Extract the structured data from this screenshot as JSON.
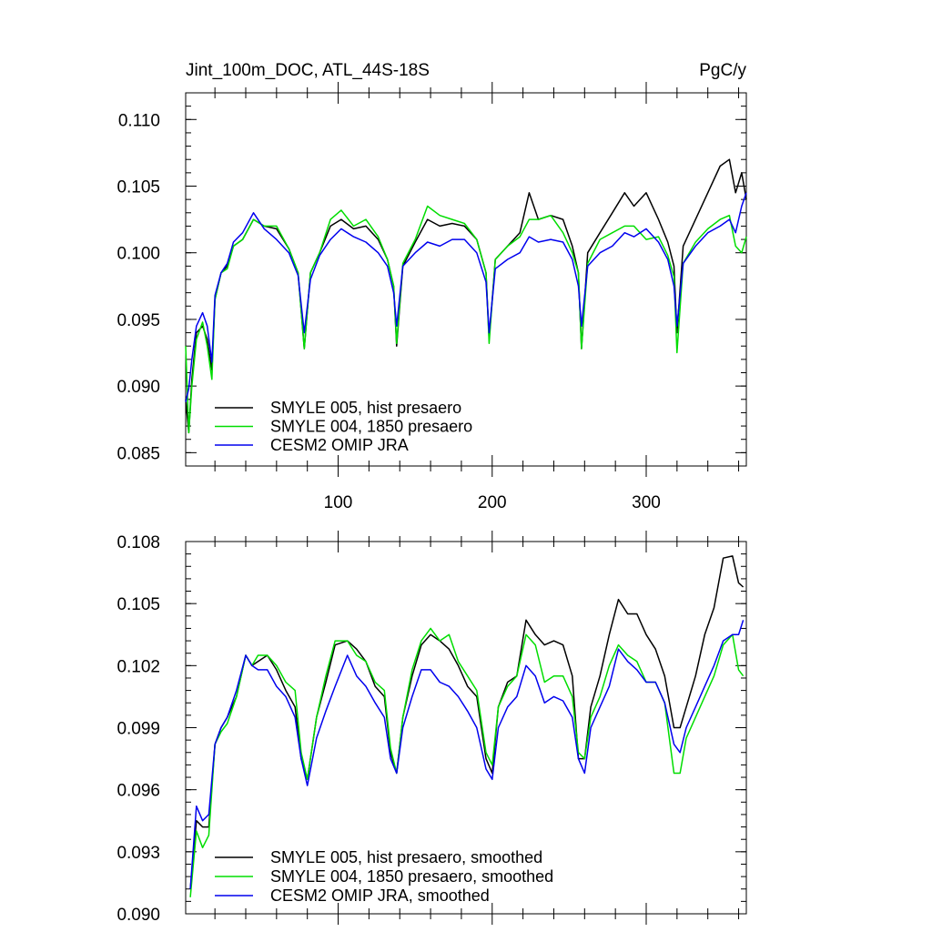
{
  "chart_data": [
    {
      "type": "line",
      "title_left": "Jint_100m_DOC, ATL_44S-18S",
      "title_right": "PgC/y",
      "xlim": [
        1,
        365
      ],
      "ylim": [
        0.084,
        0.112
      ],
      "x_ticks": [
        100,
        200,
        300
      ],
      "x_tick_labels": [
        "100",
        "200",
        "300"
      ],
      "y_ticks": [
        0.085,
        0.09,
        0.095,
        0.1,
        0.105,
        0.11
      ],
      "y_tick_labels": [
        "0.085",
        "0.090",
        "0.095",
        "0.100",
        "0.105",
        "0.110"
      ],
      "grid": false,
      "legend_placement": "bottom-left",
      "series": [
        {
          "name": "SMYLE 005, hist presaero",
          "color": "#000000",
          "x": [
            1,
            3,
            5,
            8,
            12,
            15,
            18,
            20,
            24,
            28,
            32,
            38,
            45,
            52,
            60,
            68,
            74,
            78,
            82,
            88,
            95,
            102,
            110,
            118,
            126,
            132,
            136,
            138,
            142,
            150,
            158,
            166,
            174,
            182,
            190,
            196,
            198,
            202,
            210,
            218,
            224,
            230,
            238,
            246,
            252,
            256,
            258,
            262,
            270,
            278,
            286,
            292,
            300,
            308,
            314,
            318,
            320,
            324,
            332,
            340,
            348,
            354,
            358,
            362,
            365
          ],
          "values": [
            0.089,
            0.0865,
            0.0905,
            0.094,
            0.0945,
            0.0935,
            0.0912,
            0.0965,
            0.0985,
            0.099,
            0.1005,
            0.101,
            0.1025,
            0.102,
            0.1018,
            0.1003,
            0.0985,
            0.0928,
            0.0985,
            0.1,
            0.102,
            0.1025,
            0.1018,
            0.102,
            0.101,
            0.0995,
            0.0975,
            0.093,
            0.099,
            0.1008,
            0.1025,
            0.102,
            0.1022,
            0.102,
            0.101,
            0.0985,
            0.0935,
            0.0995,
            0.1005,
            0.1015,
            0.1045,
            0.1025,
            0.1028,
            0.1025,
            0.1005,
            0.0985,
            0.0928,
            0.1,
            0.1015,
            0.103,
            0.1045,
            0.1035,
            0.1045,
            0.1025,
            0.1008,
            0.099,
            0.094,
            0.1005,
            0.1025,
            0.1045,
            0.1065,
            0.107,
            0.1045,
            0.106,
            0.104
          ]
        },
        {
          "name": "SMYLE 004, 1850 presaero",
          "color": "#00dd00",
          "x": [
            1,
            3,
            5,
            8,
            12,
            15,
            18,
            20,
            24,
            28,
            32,
            38,
            45,
            52,
            60,
            68,
            74,
            78,
            82,
            88,
            95,
            102,
            110,
            118,
            126,
            132,
            136,
            138,
            142,
            150,
            158,
            166,
            174,
            182,
            190,
            196,
            198,
            202,
            210,
            218,
            224,
            230,
            238,
            246,
            252,
            256,
            258,
            262,
            270,
            278,
            286,
            292,
            300,
            308,
            314,
            318,
            320,
            324,
            332,
            340,
            348,
            354,
            358,
            362,
            365
          ],
          "values": [
            0.093,
            0.0865,
            0.09,
            0.0935,
            0.0948,
            0.093,
            0.0905,
            0.0965,
            0.0985,
            0.0988,
            0.1005,
            0.101,
            0.1025,
            0.102,
            0.102,
            0.1003,
            0.0985,
            0.0928,
            0.0985,
            0.1,
            0.1025,
            0.1032,
            0.102,
            0.1025,
            0.1012,
            0.0995,
            0.0975,
            0.0932,
            0.0992,
            0.101,
            0.1035,
            0.1028,
            0.1025,
            0.1022,
            0.101,
            0.0985,
            0.0932,
            0.0995,
            0.1005,
            0.1012,
            0.1025,
            0.1025,
            0.1028,
            0.1015,
            0.1,
            0.0985,
            0.0928,
            0.0992,
            0.101,
            0.1015,
            0.102,
            0.102,
            0.101,
            0.1012,
            0.0998,
            0.0982,
            0.0925,
            0.0992,
            0.1008,
            0.1018,
            0.1025,
            0.1028,
            0.1005,
            0.1,
            0.1012
          ]
        },
        {
          "name": "CESM2 OMIP JRA",
          "color": "#0000ee",
          "x": [
            1,
            3,
            5,
            8,
            12,
            15,
            18,
            20,
            24,
            28,
            32,
            38,
            45,
            52,
            60,
            68,
            74,
            78,
            82,
            88,
            95,
            102,
            110,
            118,
            126,
            132,
            136,
            138,
            142,
            150,
            158,
            166,
            174,
            182,
            190,
            196,
            198,
            202,
            210,
            218,
            224,
            230,
            238,
            246,
            252,
            256,
            258,
            262,
            270,
            278,
            286,
            292,
            300,
            308,
            314,
            318,
            320,
            324,
            332,
            340,
            348,
            354,
            358,
            362,
            365
          ],
          "values": [
            0.0888,
            0.0898,
            0.092,
            0.0945,
            0.0955,
            0.0945,
            0.0918,
            0.0968,
            0.0985,
            0.0992,
            0.1008,
            0.1015,
            0.103,
            0.1018,
            0.101,
            0.1,
            0.0983,
            0.094,
            0.098,
            0.0998,
            0.101,
            0.1018,
            0.1012,
            0.1008,
            0.1,
            0.099,
            0.097,
            0.0945,
            0.099,
            0.1,
            0.1008,
            0.1005,
            0.101,
            0.101,
            0.1,
            0.0978,
            0.094,
            0.0988,
            0.0995,
            0.1,
            0.1012,
            0.1008,
            0.101,
            0.1008,
            0.0995,
            0.0975,
            0.0945,
            0.099,
            0.1,
            0.1005,
            0.1015,
            0.1012,
            0.1018,
            0.1008,
            0.0995,
            0.0975,
            0.0945,
            0.0992,
            0.1005,
            0.1015,
            0.102,
            0.1025,
            0.1015,
            0.1035,
            0.1045
          ]
        }
      ],
      "legend": [
        "SMYLE 005, hist presaero",
        "SMYLE 004, 1850 presaero",
        "CESM2 OMIP JRA"
      ]
    },
    {
      "type": "line",
      "xlim": [
        1,
        365
      ],
      "ylim": [
        0.09,
        0.108
      ],
      "y_ticks": [
        0.09,
        0.093,
        0.096,
        0.099,
        0.102,
        0.105,
        0.108
      ],
      "y_tick_labels": [
        "0.090",
        "0.093",
        "0.096",
        "0.099",
        "0.102",
        "0.105",
        "0.108"
      ],
      "grid": false,
      "legend_placement": "bottom-left",
      "series": [
        {
          "name": "SMYLE 005, hist presaero, smoothed",
          "color": "#000000",
          "x": [
            4,
            8,
            12,
            16,
            20,
            24,
            28,
            34,
            40,
            44,
            48,
            54,
            60,
            66,
            72,
            76,
            80,
            86,
            92,
            98,
            106,
            112,
            118,
            124,
            130,
            134,
            138,
            142,
            148,
            154,
            160,
            166,
            172,
            178,
            184,
            190,
            196,
            200,
            204,
            210,
            216,
            222,
            228,
            234,
            240,
            246,
            252,
            256,
            260,
            264,
            270,
            276,
            282,
            288,
            294,
            300,
            306,
            312,
            318,
            322,
            326,
            332,
            338,
            344,
            350,
            356,
            360,
            363
          ],
          "values": [
            0.0912,
            0.0945,
            0.0942,
            0.0942,
            0.0982,
            0.099,
            0.0995,
            0.1005,
            0.1025,
            0.102,
            0.1022,
            0.1025,
            0.1018,
            0.1008,
            0.1,
            0.0975,
            0.0965,
            0.0995,
            0.1012,
            0.103,
            0.1032,
            0.1028,
            0.1022,
            0.101,
            0.1005,
            0.0978,
            0.0968,
            0.0995,
            0.1015,
            0.103,
            0.1035,
            0.1032,
            0.1028,
            0.102,
            0.101,
            0.1005,
            0.0975,
            0.0968,
            0.1,
            0.1012,
            0.1015,
            0.1042,
            0.1035,
            0.103,
            0.1032,
            0.103,
            0.1015,
            0.0975,
            0.0975,
            0.1,
            0.1015,
            0.1035,
            0.1052,
            0.1045,
            0.1045,
            0.1035,
            0.1028,
            0.1015,
            0.099,
            0.099,
            0.1,
            0.1015,
            0.1035,
            0.1048,
            0.1072,
            0.1073,
            0.106,
            0.1058
          ]
        },
        {
          "name": "SMYLE 004, 1850 presaero, smoothed",
          "color": "#00dd00",
          "x": [
            4,
            8,
            12,
            16,
            20,
            24,
            28,
            34,
            40,
            44,
            48,
            54,
            60,
            66,
            72,
            76,
            80,
            86,
            92,
            98,
            106,
            112,
            118,
            124,
            130,
            134,
            138,
            142,
            148,
            154,
            160,
            166,
            172,
            178,
            184,
            190,
            196,
            200,
            204,
            210,
            216,
            222,
            228,
            234,
            240,
            246,
            252,
            256,
            260,
            264,
            270,
            276,
            282,
            288,
            294,
            300,
            306,
            312,
            318,
            322,
            326,
            332,
            338,
            344,
            350,
            356,
            360,
            363
          ],
          "values": [
            0.0908,
            0.094,
            0.0932,
            0.0938,
            0.0982,
            0.0988,
            0.0992,
            0.1005,
            0.1025,
            0.102,
            0.1025,
            0.1025,
            0.102,
            0.1012,
            0.1008,
            0.0978,
            0.0965,
            0.0995,
            0.1015,
            0.1032,
            0.1032,
            0.1025,
            0.1022,
            0.1012,
            0.1008,
            0.098,
            0.0968,
            0.0995,
            0.1018,
            0.1032,
            0.1038,
            0.1032,
            0.1035,
            0.1022,
            0.1015,
            0.1008,
            0.0978,
            0.0972,
            0.1,
            0.101,
            0.1015,
            0.1035,
            0.103,
            0.1012,
            0.1015,
            0.1015,
            0.1005,
            0.0978,
            0.0975,
            0.0995,
            0.1005,
            0.102,
            0.103,
            0.1025,
            0.1022,
            0.1012,
            0.1012,
            0.1002,
            0.0968,
            0.0968,
            0.0985,
            0.0995,
            0.1005,
            0.1015,
            0.103,
            0.1035,
            0.1018,
            0.1015
          ]
        },
        {
          "name": "CESM2 OMIP JRA, smoothed",
          "color": "#0000ee",
          "x": [
            4,
            8,
            12,
            16,
            20,
            24,
            28,
            34,
            40,
            44,
            48,
            54,
            60,
            66,
            72,
            76,
            80,
            86,
            92,
            98,
            106,
            112,
            118,
            124,
            130,
            134,
            138,
            142,
            148,
            154,
            160,
            166,
            172,
            178,
            184,
            190,
            196,
            200,
            204,
            210,
            216,
            222,
            228,
            234,
            240,
            246,
            252,
            256,
            260,
            264,
            270,
            276,
            282,
            288,
            294,
            300,
            306,
            312,
            318,
            322,
            326,
            332,
            338,
            344,
            350,
            356,
            360,
            363
          ],
          "values": [
            0.0912,
            0.0952,
            0.0945,
            0.0948,
            0.0982,
            0.099,
            0.0995,
            0.1008,
            0.1025,
            0.102,
            0.1018,
            0.1018,
            0.101,
            0.1005,
            0.0995,
            0.0975,
            0.0962,
            0.0985,
            0.0998,
            0.101,
            0.1025,
            0.1015,
            0.101,
            0.1002,
            0.0995,
            0.0975,
            0.0968,
            0.099,
            0.1005,
            0.1018,
            0.1018,
            0.1012,
            0.101,
            0.1005,
            0.0998,
            0.099,
            0.097,
            0.0965,
            0.099,
            0.1,
            0.1005,
            0.102,
            0.1015,
            0.1002,
            0.1005,
            0.1003,
            0.0995,
            0.0975,
            0.0968,
            0.099,
            0.1,
            0.101,
            0.1028,
            0.1022,
            0.1018,
            0.1012,
            0.1012,
            0.1002,
            0.0982,
            0.0978,
            0.099,
            0.1,
            0.101,
            0.102,
            0.1032,
            0.1035,
            0.1035,
            0.1042
          ]
        }
      ],
      "legend": [
        "SMYLE 005, hist presaero, smoothed",
        "SMYLE 004, 1850 presaero, smoothed",
        "CESM2 OMIP JRA, smoothed"
      ]
    }
  ]
}
